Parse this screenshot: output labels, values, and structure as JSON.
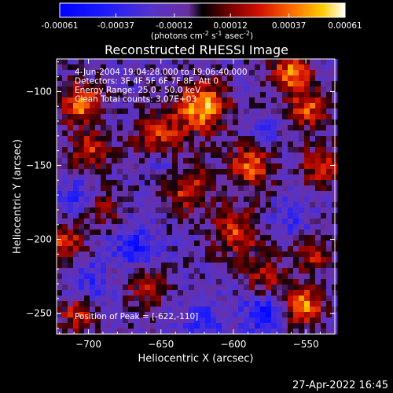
{
  "chart_data": {
    "type": "heatmap",
    "title": "Reconstructed RHESSI Image",
    "xlabel": "Heliocentric X (arcsec)",
    "ylabel": "Heliocentric Y (arcsec)",
    "xlim": [
      -722,
      -530
    ],
    "ylim": [
      -264,
      -78
    ],
    "x_ticks": [
      -700,
      -650,
      -600,
      -550
    ],
    "y_ticks": [
      -100,
      -150,
      -200,
      -250
    ],
    "grid": false,
    "colorbar": {
      "range": [
        -0.00061,
        0.00061
      ],
      "tick_labels": [
        "-0.00061",
        "-0.00037",
        "-0.00012",
        "0.00012",
        "0.00037",
        "0.00061"
      ],
      "unit_label": {
        "prefix": "(photons cm",
        "sup1": "-2",
        "mid1": " s",
        "sup2": "-1",
        "mid2": " asec",
        "sup3": "-2",
        "suffix": ")"
      }
    },
    "annotations": [
      "4-Jun-2004 19:04:28.000 to 19:06:40.000",
      "Detectors: 3F 4F 5F 6F 7F 8F, Att 0",
      "Energy Range: 25.0 - 50.0 keV",
      "Clean     Total counts: 3.07E+03"
    ],
    "peak_label": "Position of Peak = [-622,-110]",
    "peak": [
      -622,
      -110
    ],
    "blobs": [
      {
        "x": -622,
        "y": -110,
        "amp": 1.0,
        "r": 12
      },
      {
        "x": -705,
        "y": -108,
        "amp": 0.85,
        "r": 10
      },
      {
        "x": -700,
        "y": -140,
        "amp": 0.6,
        "r": 10
      },
      {
        "x": -560,
        "y": -88,
        "amp": 0.85,
        "r": 10
      },
      {
        "x": -548,
        "y": -112,
        "amp": 0.7,
        "r": 9
      },
      {
        "x": -652,
        "y": -130,
        "amp": 0.65,
        "r": 12
      },
      {
        "x": -632,
        "y": -165,
        "amp": 0.65,
        "r": 12
      },
      {
        "x": -588,
        "y": -150,
        "amp": 0.75,
        "r": 11
      },
      {
        "x": -598,
        "y": -195,
        "amp": 0.65,
        "r": 12
      },
      {
        "x": -578,
        "y": -225,
        "amp": 0.55,
        "r": 10
      },
      {
        "x": -715,
        "y": -202,
        "amp": 0.7,
        "r": 8
      },
      {
        "x": -708,
        "y": -250,
        "amp": 0.6,
        "r": 9
      },
      {
        "x": -552,
        "y": -245,
        "amp": 0.95,
        "r": 9
      },
      {
        "x": -545,
        "y": -210,
        "amp": 0.5,
        "r": 9
      },
      {
        "x": -660,
        "y": -232,
        "amp": 0.5,
        "r": 10
      },
      {
        "x": -540,
        "y": -150,
        "amp": 0.6,
        "r": 10
      },
      {
        "x": -690,
        "y": -180,
        "amp": 0.35,
        "r": 10
      },
      {
        "x": -668,
        "y": -205,
        "amp": -0.55,
        "r": 10
      },
      {
        "x": -580,
        "y": -250,
        "amp": -0.6,
        "r": 9
      },
      {
        "x": -648,
        "y": -150,
        "amp": -0.35,
        "r": 9
      },
      {
        "x": -710,
        "y": -170,
        "amp": -0.4,
        "r": 8
      },
      {
        "x": -700,
        "y": -230,
        "amp": -0.35,
        "r": 10
      },
      {
        "x": -620,
        "y": -255,
        "amp": -0.4,
        "r": 9
      },
      {
        "x": -560,
        "y": -185,
        "amp": -0.3,
        "r": 9
      },
      {
        "x": -580,
        "y": -130,
        "amp": -0.3,
        "r": 8
      }
    ]
  },
  "timestamp": "27-Apr-2022 16:45"
}
